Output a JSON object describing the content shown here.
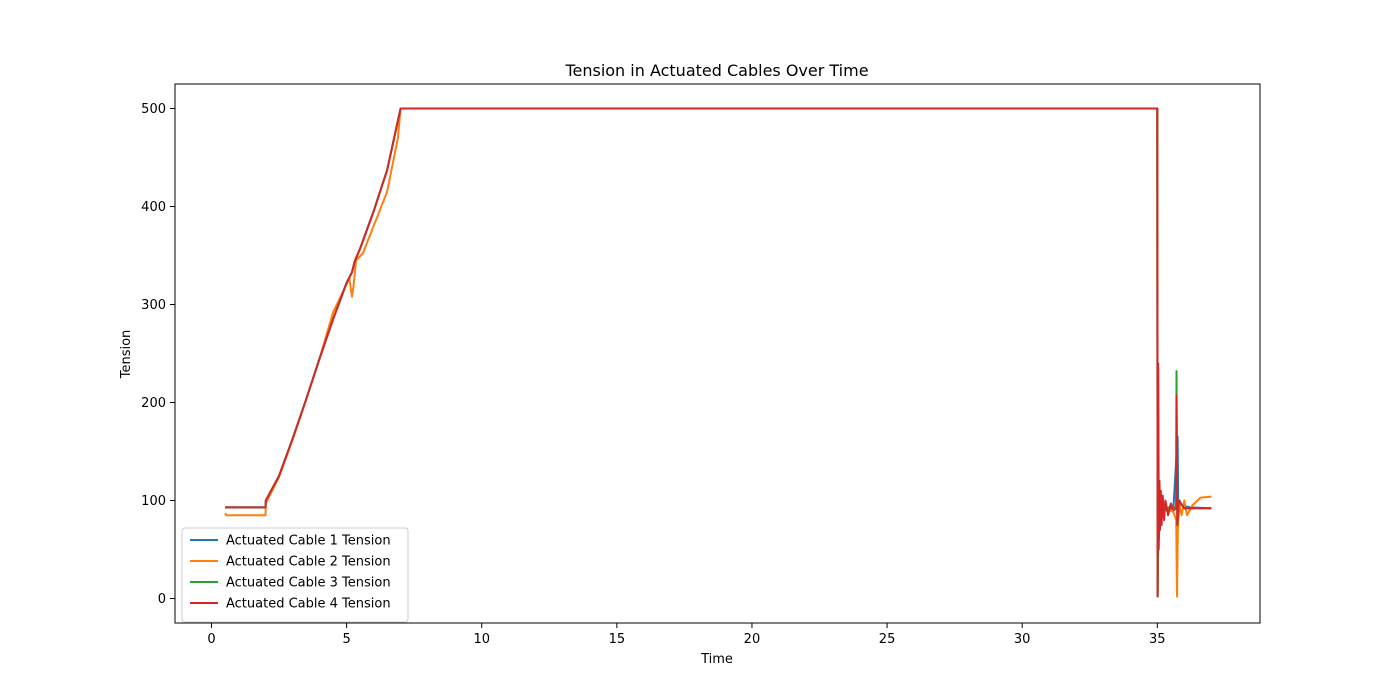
{
  "chart_data": {
    "type": "line",
    "title": "Tension in Actuated Cables Over Time",
    "xlabel": "Time",
    "ylabel": "Tension",
    "xlim": [
      -1.35,
      38.8
    ],
    "ylim": [
      -25,
      525
    ],
    "xticks": [
      0,
      5,
      10,
      15,
      20,
      25,
      30,
      35
    ],
    "yticks": [
      0,
      100,
      200,
      300,
      400,
      500
    ],
    "xtick_labels": [
      "0",
      "5",
      "10",
      "15",
      "20",
      "25",
      "30",
      "35"
    ],
    "ytick_labels": [
      "0",
      "100",
      "200",
      "300",
      "400",
      "500"
    ],
    "grid": false,
    "legend_position": "lower-left",
    "series": [
      {
        "name": "Actuated Cable 1 Tension",
        "color": "#1f77b4",
        "x": [
          0.5,
          2.0,
          2.01,
          2.5,
          3.0,
          3.5,
          4.0,
          4.5,
          5.0,
          5.2,
          5.3,
          5.5,
          6.0,
          6.5,
          7.0,
          35.0,
          35.01,
          35.03,
          35.06,
          35.1,
          35.2,
          35.4,
          35.6,
          35.75,
          35.78,
          35.82,
          35.9,
          36.2,
          37.0
        ],
        "y": [
          93,
          93,
          100,
          125,
          163,
          203,
          245,
          285,
          322,
          333,
          344,
          357,
          395,
          437,
          500,
          500,
          2,
          240,
          60,
          110,
          95,
          88,
          94,
          165,
          80,
          100,
          95,
          93,
          92
        ]
      },
      {
        "name": "Actuated Cable 2 Tension",
        "color": "#ff7f0e",
        "x": [
          0.5,
          0.55,
          2.0,
          2.01,
          2.5,
          3.0,
          3.5,
          4.0,
          4.5,
          4.9,
          5.1,
          5.2,
          5.25,
          5.35,
          5.6,
          6.0,
          6.5,
          6.9,
          7.0,
          35.0,
          35.01,
          35.05,
          35.1,
          35.3,
          35.6,
          35.7,
          35.73,
          35.76,
          35.8,
          35.9,
          36.0,
          36.1,
          36.3,
          36.6,
          37.0
        ],
        "y": [
          87,
          85,
          85,
          97,
          124,
          162,
          203,
          245,
          292,
          315,
          327,
          308,
          318,
          345,
          352,
          380,
          415,
          470,
          500,
          500,
          2,
          105,
          90,
          93,
          88,
          80,
          2,
          68,
          98,
          85,
          100,
          85,
          95,
          103,
          104
        ]
      },
      {
        "name": "Actuated Cable 3 Tension",
        "color": "#2ca02c",
        "x": [
          0.5,
          2.0,
          2.01,
          2.5,
          3.0,
          3.5,
          4.0,
          4.5,
          5.0,
          5.2,
          5.3,
          5.5,
          6.0,
          6.5,
          7.0,
          35.0,
          35.01,
          35.05,
          35.1,
          35.3,
          35.6,
          35.7,
          35.71,
          35.74,
          35.8,
          36.0,
          36.5,
          37.0
        ],
        "y": [
          93,
          93,
          100,
          125,
          163,
          203,
          245,
          285,
          322,
          333,
          344,
          357,
          395,
          437,
          500,
          500,
          2,
          110,
          95,
          92,
          94,
          92,
          232,
          75,
          100,
          92,
          92,
          92
        ]
      },
      {
        "name": "Actuated Cable 4 Tension",
        "color": "#d62728",
        "x": [
          0.5,
          2.0,
          2.01,
          2.5,
          3.0,
          3.5,
          4.0,
          4.5,
          5.0,
          5.2,
          5.3,
          5.5,
          6.0,
          6.5,
          7.0,
          35.0,
          35.01,
          35.03,
          35.05,
          35.08,
          35.1,
          35.13,
          35.16,
          35.2,
          35.25,
          35.3,
          35.4,
          35.5,
          35.6,
          35.7,
          35.71,
          35.74,
          35.8,
          36.0,
          36.5,
          37.0
        ],
        "y": [
          93,
          93,
          100,
          125,
          163,
          203,
          245,
          285,
          322,
          333,
          344,
          357,
          395,
          437,
          500,
          500,
          2,
          240,
          50,
          120,
          70,
          110,
          75,
          105,
          80,
          100,
          85,
          97,
          90,
          92,
          207,
          75,
          100,
          92,
          92,
          92
        ]
      }
    ]
  }
}
